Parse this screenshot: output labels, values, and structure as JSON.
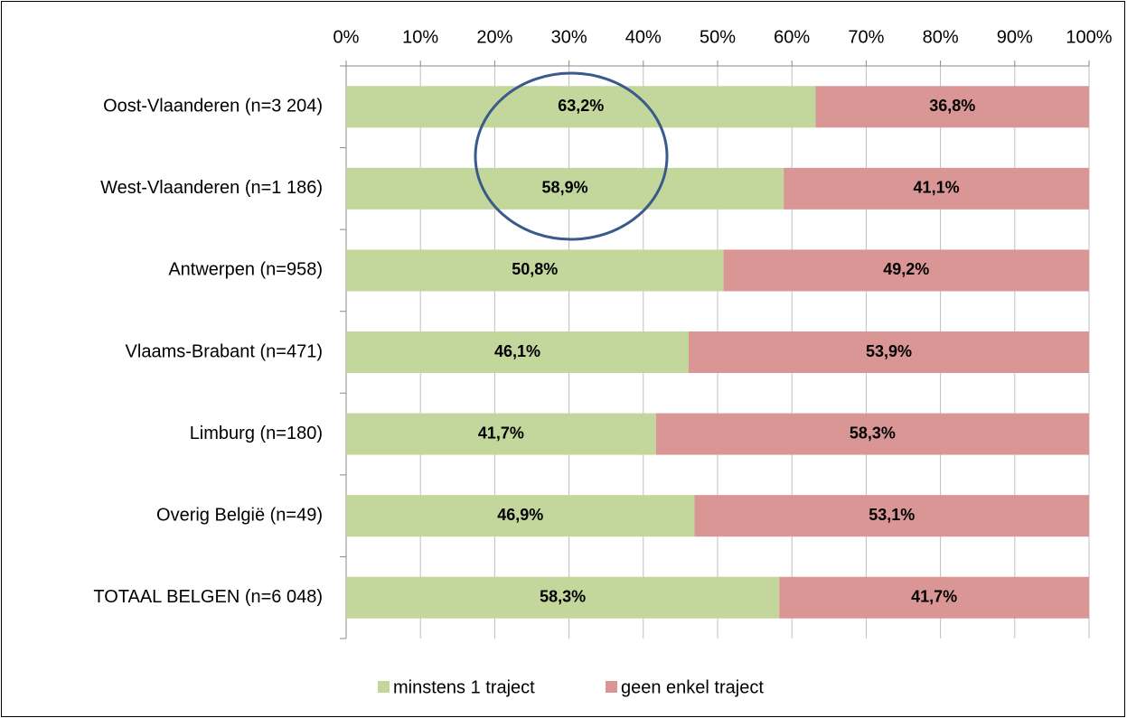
{
  "chart_data": {
    "type": "stacked-bar-horizontal",
    "categories": [
      "Oost-Vlaanderen (n=3 204)",
      "West-Vlaanderen (n=1 186)",
      "Antwerpen (n=958)",
      "Vlaams-Brabant (n=471)",
      "Limburg (n=180)",
      "Overig België (n=49)",
      "TOTAAL BELGEN (n=6 048)"
    ],
    "series": [
      {
        "name": "minstens 1 traject",
        "color": "#c3d69b",
        "values": [
          63.2,
          58.9,
          50.8,
          46.1,
          41.7,
          46.9,
          58.3
        ],
        "value_labels": [
          "63,2%",
          "58,9%",
          "50,8%",
          "46,1%",
          "41,7%",
          "46,9%",
          "58,3%"
        ]
      },
      {
        "name": "geen enkel traject",
        "color": "#d99694",
        "values": [
          36.8,
          41.1,
          49.2,
          53.9,
          58.3,
          53.1,
          41.7
        ],
        "value_labels": [
          "36,8%",
          "41,1%",
          "49,2%",
          "53,9%",
          "58,3%",
          "53,1%",
          "41,7%"
        ]
      }
    ],
    "xlim": [
      0,
      100
    ],
    "xticks": [
      {
        "value": 0,
        "label": "0%"
      },
      {
        "value": 10,
        "label": "10%"
      },
      {
        "value": 20,
        "label": "20%"
      },
      {
        "value": 30,
        "label": "30%"
      },
      {
        "value": 40,
        "label": "40%"
      },
      {
        "value": 50,
        "label": "50%"
      },
      {
        "value": 60,
        "label": "60%"
      },
      {
        "value": 70,
        "label": "70%"
      },
      {
        "value": 80,
        "label": "80%"
      },
      {
        "value": 90,
        "label": "90%"
      },
      {
        "value": 100,
        "label": "100%"
      }
    ],
    "grid": true,
    "legend": "bottom"
  }
}
